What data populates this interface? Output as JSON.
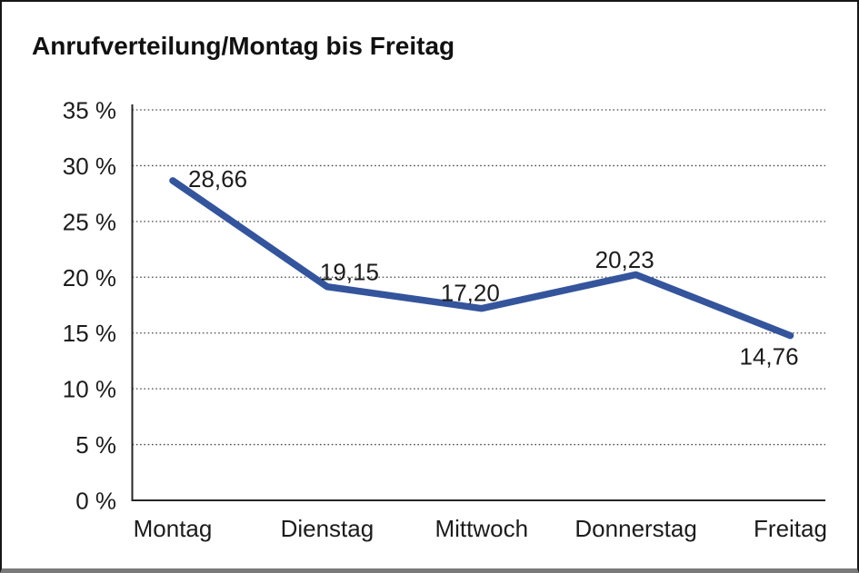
{
  "chart_data": {
    "type": "line",
    "title": "Anrufverteilung/Montag bis Freitag",
    "categories": [
      "Montag",
      "Dienstag",
      "Mittwoch",
      "Donnerstag",
      "Freitag"
    ],
    "series": [
      {
        "name": "Anrufverteilung",
        "values": [
          28.66,
          19.15,
          17.2,
          20.23,
          14.76
        ],
        "value_labels": [
          "28,66",
          "19,15",
          "17,20",
          "20,23",
          "14,76"
        ]
      }
    ],
    "xlabel": "",
    "ylabel": "",
    "ylim": [
      0,
      35
    ],
    "y_ticks": [
      0,
      5,
      10,
      15,
      20,
      25,
      30,
      35
    ],
    "y_tick_labels": [
      "0 %",
      "5 %",
      "10 %",
      "15 %",
      "20 %",
      "25 %",
      "30 %",
      "35 %"
    ],
    "grid": "horizontal-dotted",
    "legend": "none",
    "colors": {
      "line": "#34549C",
      "axis": "#262626",
      "gridline": "#4a4a4a",
      "text": "#1c1c1c"
    }
  }
}
